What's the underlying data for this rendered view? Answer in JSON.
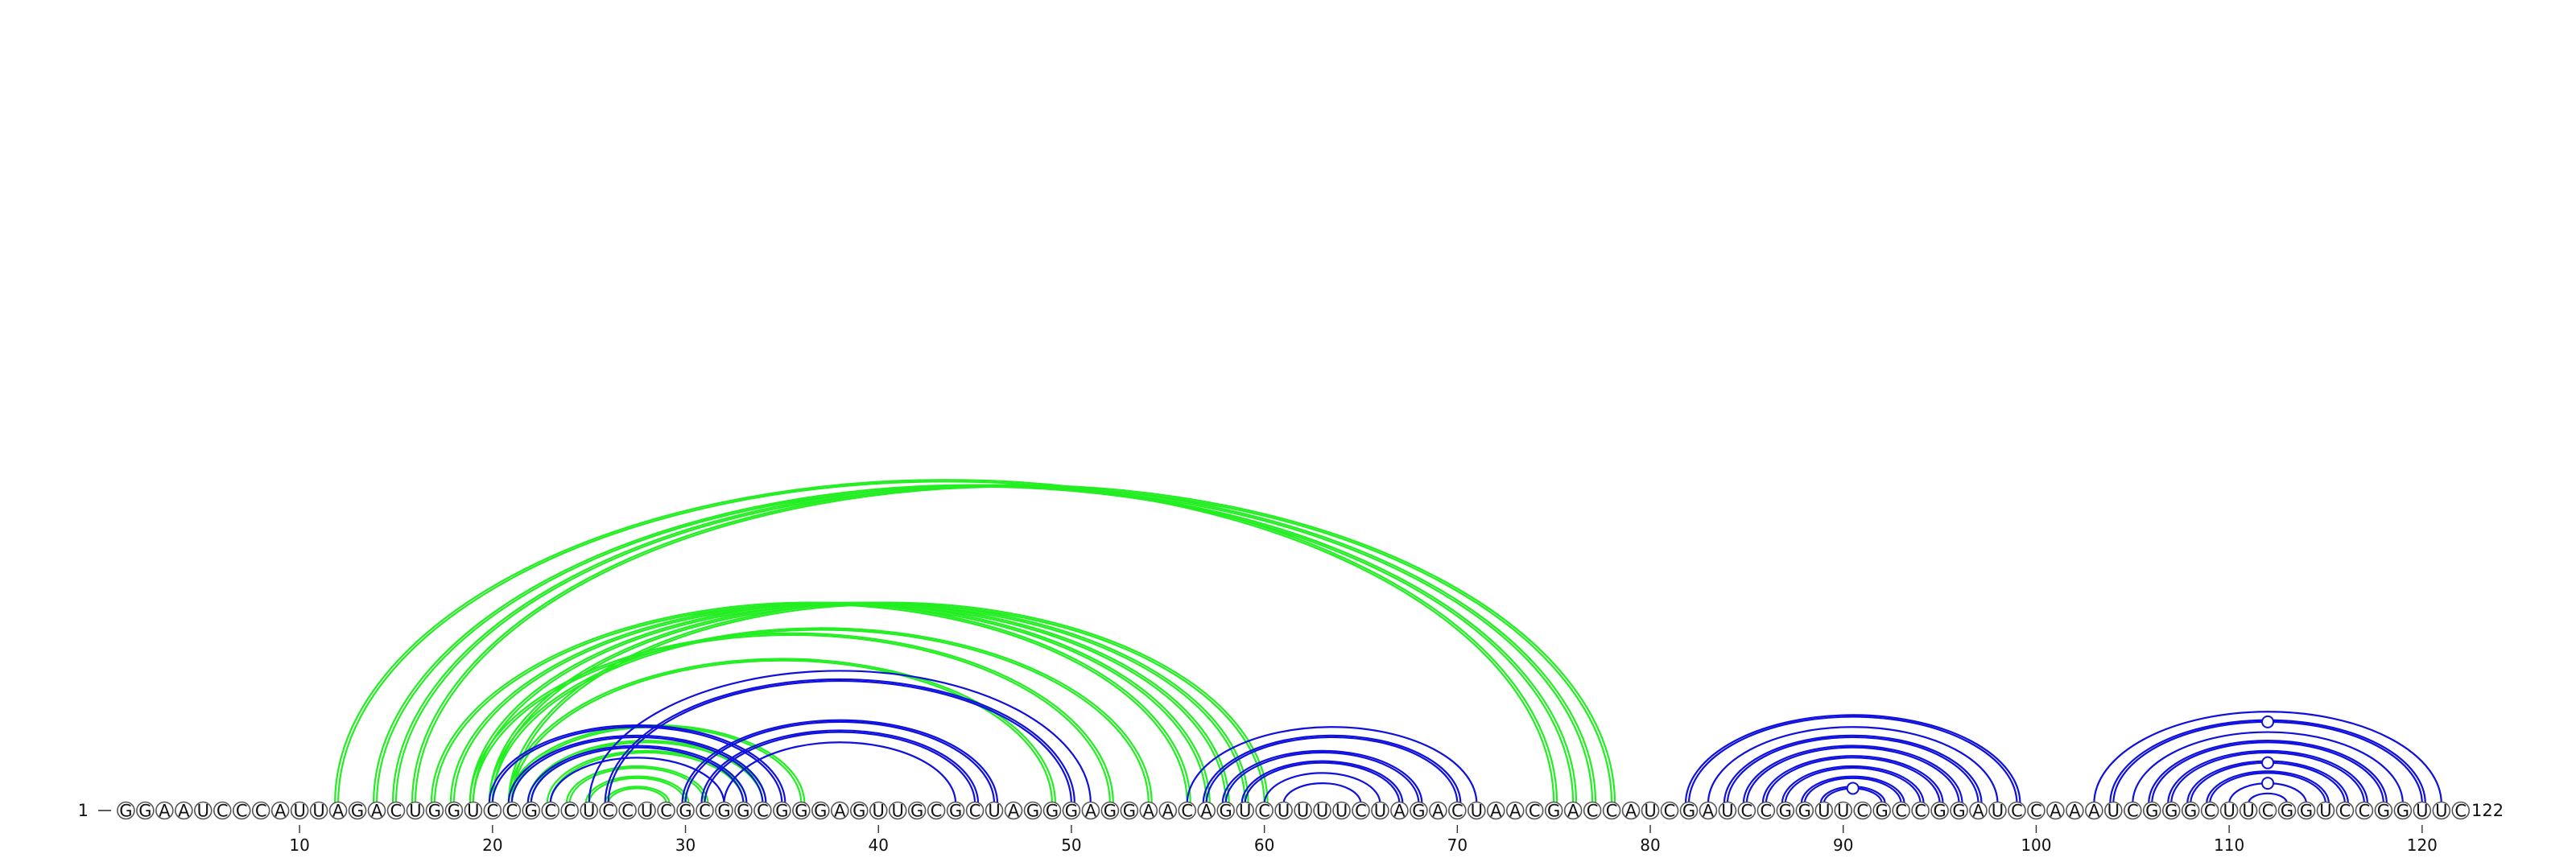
{
  "sequence": "GGAAUCCCAUUAGACUGGUCCGCCUCCUCGCGGCGGGAGUUGCGCUAGGGAGGAACAGUCUUUUCUAGACUAACGACCAUCGAUCCGGUUCGCCGGAUCCAAAUCGGGCUUCGGUCCGGUUC",
  "start_label": "1",
  "end_label": "122",
  "tick_labels": [
    "10",
    "20",
    "30",
    "40",
    "50",
    "60",
    "70",
    "80",
    "90",
    "100",
    "110",
    "120"
  ],
  "colors": {
    "green": "#22ee22",
    "blue": "#1010dd"
  },
  "arcs": [
    {
      "i": 12,
      "j": 75,
      "color": "green",
      "double": true
    },
    {
      "i": 14,
      "j": 76,
      "color": "green",
      "double": true
    },
    {
      "i": 15,
      "j": 77,
      "color": "green",
      "double": true
    },
    {
      "i": 16,
      "j": 78,
      "color": "green",
      "double": true
    },
    {
      "i": 17,
      "j": 56,
      "color": "green",
      "double": true
    },
    {
      "i": 18,
      "j": 57,
      "color": "green",
      "double": true
    },
    {
      "i": 19,
      "j": 58,
      "color": "green",
      "double": true
    },
    {
      "i": 20,
      "j": 59,
      "color": "green",
      "double": true
    },
    {
      "i": 21,
      "j": 60,
      "color": "green",
      "double": true
    },
    {
      "i": 19,
      "j": 52,
      "color": "green",
      "double": true
    },
    {
      "i": 20,
      "j": 54,
      "color": "green",
      "double": true
    },
    {
      "i": 21,
      "j": 49,
      "color": "green",
      "double": true
    },
    {
      "i": 22,
      "j": 34,
      "color": "green",
      "double": true
    },
    {
      "i": 23,
      "j": 33,
      "color": "green",
      "double": true
    },
    {
      "i": 24,
      "j": 31,
      "color": "green",
      "double": true
    },
    {
      "i": 25,
      "j": 30,
      "color": "green",
      "double": true
    },
    {
      "i": 26,
      "j": 29,
      "color": "green",
      "double": true
    },
    {
      "i": 21,
      "j": 36,
      "color": "green",
      "double": true
    },
    {
      "i": 20,
      "j": 35,
      "color": "blue",
      "double": true
    },
    {
      "i": 21,
      "j": 34,
      "color": "blue",
      "double": true
    },
    {
      "i": 22,
      "j": 33,
      "color": "blue",
      "double": true
    },
    {
      "i": 23,
      "j": 32,
      "color": "blue",
      "double": false
    },
    {
      "i": 25,
      "j": 51,
      "color": "blue",
      "double": false
    },
    {
      "i": 26,
      "j": 50,
      "color": "blue",
      "double": true
    },
    {
      "i": 30,
      "j": 46,
      "color": "blue",
      "double": true
    },
    {
      "i": 31,
      "j": 45,
      "color": "blue",
      "double": true
    },
    {
      "i": 32,
      "j": 44,
      "color": "blue",
      "double": false
    },
    {
      "i": 56,
      "j": 71,
      "color": "blue",
      "double": false
    },
    {
      "i": 57,
      "j": 70,
      "color": "blue",
      "double": true
    },
    {
      "i": 58,
      "j": 68,
      "color": "blue",
      "double": true
    },
    {
      "i": 59,
      "j": 67,
      "color": "blue",
      "double": true
    },
    {
      "i": 60,
      "j": 66,
      "color": "blue",
      "double": false
    },
    {
      "i": 61,
      "j": 65,
      "color": "blue",
      "double": false
    },
    {
      "i": 82,
      "j": 99,
      "color": "blue",
      "double": true
    },
    {
      "i": 83,
      "j": 98,
      "color": "blue",
      "double": false
    },
    {
      "i": 84,
      "j": 97,
      "color": "blue",
      "double": true
    },
    {
      "i": 85,
      "j": 96,
      "color": "blue",
      "double": true
    },
    {
      "i": 86,
      "j": 95,
      "color": "blue",
      "double": true
    },
    {
      "i": 87,
      "j": 94,
      "color": "blue",
      "double": true
    },
    {
      "i": 88,
      "j": 93,
      "color": "blue",
      "double": true
    },
    {
      "i": 89,
      "j": 92,
      "color": "blue",
      "double": true
    },
    {
      "i": 103,
      "j": 121,
      "color": "blue",
      "double": false
    },
    {
      "i": 104,
      "j": 120,
      "color": "blue",
      "double": true
    },
    {
      "i": 105,
      "j": 119,
      "color": "blue",
      "double": false
    },
    {
      "i": 106,
      "j": 118,
      "color": "blue",
      "double": true
    },
    {
      "i": 107,
      "j": 117,
      "color": "blue",
      "double": true
    },
    {
      "i": 108,
      "j": 116,
      "color": "blue",
      "double": true
    },
    {
      "i": 109,
      "j": 115,
      "color": "blue",
      "double": true
    },
    {
      "i": 110,
      "j": 114,
      "color": "blue",
      "double": false
    },
    {
      "i": 111,
      "j": 113,
      "color": "blue",
      "double": false
    }
  ],
  "arc_markers": [
    {
      "i": 89,
      "j": 92
    },
    {
      "i": 104,
      "j": 120
    },
    {
      "i": 108,
      "j": 116
    },
    {
      "i": 110,
      "j": 114
    }
  ]
}
